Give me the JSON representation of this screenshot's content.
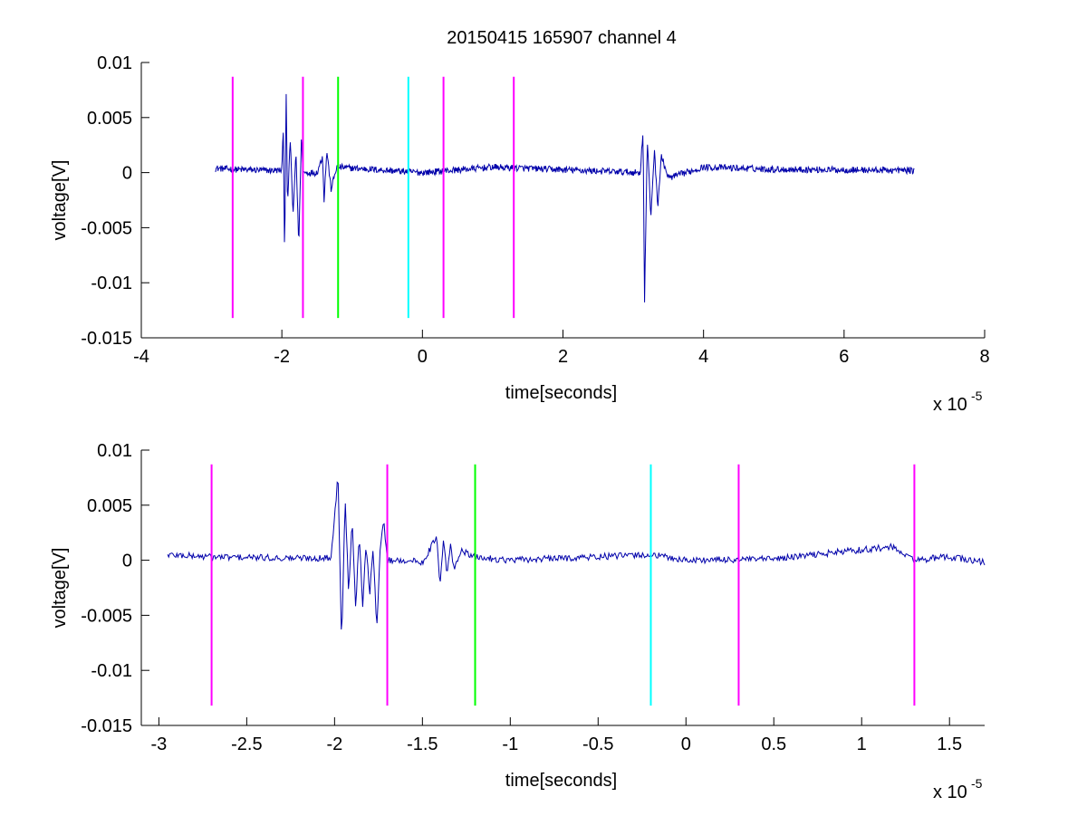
{
  "figure": {
    "title": "20150415 165907 channel 4"
  },
  "chart_data": [
    {
      "type": "line",
      "panel": "top",
      "title": "20150415 165907 channel 4",
      "xlabel": "time[seconds]",
      "ylabel": "voltage[V]",
      "x_multiplier_label": "x 10",
      "x_multiplier_exp": "-5",
      "xlim": [
        -4,
        8
      ],
      "ylim": [
        -0.015,
        0.01
      ],
      "xticks": [
        -4,
        -2,
        0,
        2,
        4,
        6,
        8
      ],
      "xtick_labels": [
        "-4",
        "-2",
        "0",
        "2",
        "4",
        "6",
        "8"
      ],
      "yticks": [
        -0.015,
        -0.01,
        -0.005,
        0,
        0.005,
        0.01
      ],
      "ytick_labels": [
        "-0.015",
        "-0.01",
        "-0.005",
        "0",
        "0.005",
        "0.01"
      ],
      "signal": {
        "color": "#0000aa",
        "x_start": -2.95,
        "x_end": 7.0,
        "key_points": [
          [
            -2.95,
            0.0004
          ],
          [
            -2.7,
            0.0003
          ],
          [
            -2.2,
            0.0002
          ],
          [
            -2.0,
            0.0002
          ],
          [
            -1.98,
            0.004
          ],
          [
            -1.96,
            -0.008
          ],
          [
            -1.94,
            0.008
          ],
          [
            -1.92,
            -0.003
          ],
          [
            -1.88,
            0.003
          ],
          [
            -1.84,
            -0.004
          ],
          [
            -1.8,
            0.002
          ],
          [
            -1.76,
            -0.0065
          ],
          [
            -1.72,
            0.0035
          ],
          [
            -1.7,
            0.0
          ],
          [
            -1.5,
            0.0
          ],
          [
            -1.42,
            0.0015
          ],
          [
            -1.4,
            -0.0025
          ],
          [
            -1.36,
            0.002
          ],
          [
            -1.3,
            -0.0015
          ],
          [
            -1.22,
            0.0005
          ],
          [
            0.0,
            0.0
          ],
          [
            1.0,
            0.0005
          ],
          [
            3.1,
            0.0
          ],
          [
            3.14,
            0.004
          ],
          [
            3.16,
            -0.012
          ],
          [
            3.2,
            0.003
          ],
          [
            3.25,
            -0.004
          ],
          [
            3.3,
            0.002
          ],
          [
            3.35,
            -0.003
          ],
          [
            3.4,
            0.0015
          ],
          [
            3.5,
            -0.0005
          ],
          [
            4.0,
            0.0005
          ],
          [
            5.0,
            0.0003
          ],
          [
            7.0,
            0.0002
          ]
        ]
      },
      "markers": [
        {
          "x": -2.7,
          "color": "#ff00ff"
        },
        {
          "x": -1.7,
          "color": "#ff00ff"
        },
        {
          "x": -1.2,
          "color": "#00ff00"
        },
        {
          "x": -0.2,
          "color": "#00ffff"
        },
        {
          "x": 0.3,
          "color": "#ff00ff"
        },
        {
          "x": 1.3,
          "color": "#ff00ff"
        }
      ],
      "marker_range": [
        -0.0132,
        0.0087
      ]
    },
    {
      "type": "line",
      "panel": "bottom",
      "xlabel": "time[seconds]",
      "ylabel": "voltage[V]",
      "x_multiplier_label": "x 10",
      "x_multiplier_exp": "-5",
      "xlim": [
        -3.1,
        1.7
      ],
      "ylim": [
        -0.015,
        0.01
      ],
      "xticks": [
        -3,
        -2.5,
        -2,
        -1.5,
        -1,
        -0.5,
        0,
        0.5,
        1,
        1.5
      ],
      "xtick_labels": [
        "-3",
        "-2.5",
        "-2",
        "-1.5",
        "-1",
        "-0.5",
        "0",
        "0.5",
        "1",
        "1.5"
      ],
      "yticks": [
        -0.015,
        -0.01,
        -0.005,
        0,
        0.005,
        0.01
      ],
      "ytick_labels": [
        "-0.015",
        "-0.01",
        "-0.005",
        "0",
        "0.005",
        "0.01"
      ],
      "signal": {
        "color": "#0000aa",
        "x_start": -2.95,
        "x_end": 1.7,
        "key_points": [
          [
            -2.95,
            0.0005
          ],
          [
            -2.7,
            0.0003
          ],
          [
            -2.3,
            0.0002
          ],
          [
            -2.02,
            0.0002
          ],
          [
            -1.98,
            0.0078
          ],
          [
            -1.96,
            -0.0078
          ],
          [
            -1.94,
            0.006
          ],
          [
            -1.92,
            -0.003
          ],
          [
            -1.9,
            0.004
          ],
          [
            -1.88,
            -0.0045
          ],
          [
            -1.86,
            0.0025
          ],
          [
            -1.84,
            -0.004
          ],
          [
            -1.82,
            0.0015
          ],
          [
            -1.8,
            -0.003
          ],
          [
            -1.78,
            0.001
          ],
          [
            -1.76,
            -0.0065
          ],
          [
            -1.74,
            0.0015
          ],
          [
            -1.72,
            0.0035
          ],
          [
            -1.7,
            0.0
          ],
          [
            -1.6,
            0.0
          ],
          [
            -1.5,
            -0.0002
          ],
          [
            -1.44,
            0.0015
          ],
          [
            -1.42,
            0.0023
          ],
          [
            -1.4,
            -0.0025
          ],
          [
            -1.38,
            0.002
          ],
          [
            -1.36,
            -0.0015
          ],
          [
            -1.34,
            0.0015
          ],
          [
            -1.32,
            -0.001
          ],
          [
            -1.28,
            0.001
          ],
          [
            -1.22,
            0.0003
          ],
          [
            -1.0,
            0.0
          ],
          [
            -0.2,
            0.0005
          ],
          [
            0.0,
            0.0
          ],
          [
            0.5,
            0.0001
          ],
          [
            0.9,
            0.0008
          ],
          [
            1.17,
            0.0012
          ],
          [
            1.3,
            0.0
          ],
          [
            1.5,
            0.0003
          ],
          [
            1.7,
            -0.0002
          ]
        ]
      },
      "markers": [
        {
          "x": -2.7,
          "color": "#ff00ff"
        },
        {
          "x": -1.7,
          "color": "#ff00ff"
        },
        {
          "x": -1.2,
          "color": "#00ff00"
        },
        {
          "x": -0.2,
          "color": "#00ffff"
        },
        {
          "x": 0.3,
          "color": "#ff00ff"
        },
        {
          "x": 1.3,
          "color": "#ff00ff"
        }
      ],
      "marker_range": [
        -0.0132,
        0.0087
      ]
    }
  ]
}
